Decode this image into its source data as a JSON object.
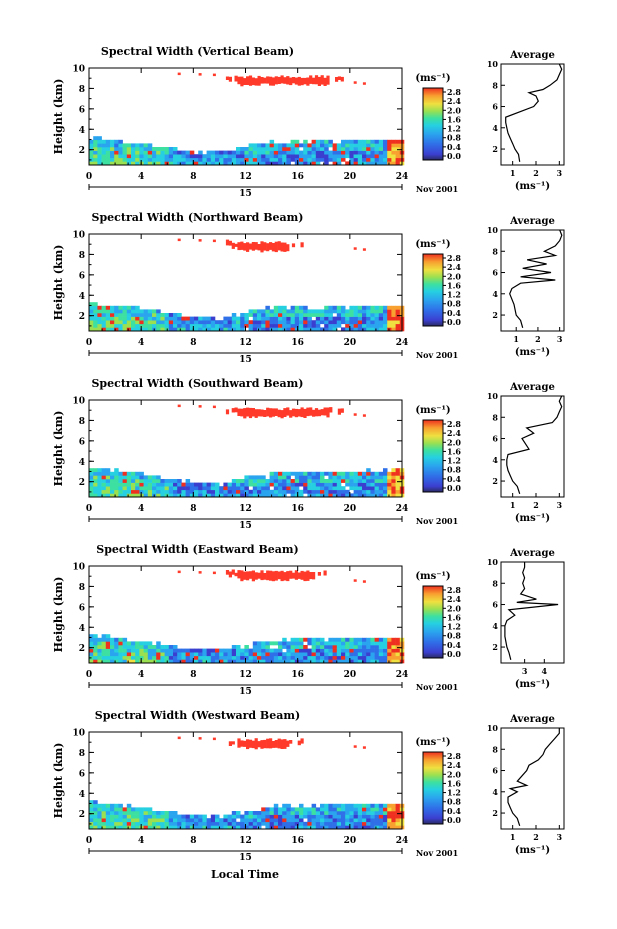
{
  "figure": {
    "xlabel": "Local Time",
    "colorbar_unit": "(ms⁻¹)",
    "colorbar_ticks": [
      "2.8",
      "2.4",
      "2.0",
      "1.6",
      "1.2",
      "0.8",
      "0.4",
      "0.0"
    ],
    "date_label": "15",
    "month_label": "Nov 2001",
    "avg_title": "Average",
    "avg_xlabel": "(ms⁻¹)",
    "colors": {
      "high_layer": "#ff3a2a",
      "colormap": [
        "#2b2b63",
        "#3b3fd0",
        "#2f6fe8",
        "#2aa4ee",
        "#26d0e0",
        "#3de0a0",
        "#9be050",
        "#f0e040",
        "#f8a030",
        "#ef3020"
      ]
    }
  },
  "chart_data": [
    {
      "type": "heatmap",
      "title": "Spectral Width (Vertical Beam)",
      "ylabel": "Height (km)",
      "x_ticks": [
        0,
        4,
        8,
        12,
        16,
        20,
        24
      ],
      "y_ticks": [
        2,
        4,
        6,
        8,
        10
      ],
      "xlim": [
        0,
        24
      ],
      "ylim": [
        0.5,
        10
      ],
      "boundary_layer_top_km": [
        3.4,
        3.1,
        2.8,
        2.4,
        2.0,
        2.0,
        2.6,
        2.9,
        3.0,
        3.1,
        3.1,
        3.1,
        3.2
      ],
      "upper_layer": {
        "x_start": 10.5,
        "x_end": 19.5,
        "y_min": 8.2,
        "y_max": 9.3
      },
      "average": {
        "xlabel_ticks": [
          "1",
          "2",
          "3"
        ],
        "xlim": [
          0.5,
          3.2
        ],
        "y_ticks": [
          2,
          4,
          6,
          8,
          10
        ],
        "y": [
          0.8,
          1.5,
          2.0,
          2.5,
          3.0,
          3.5,
          4.0,
          4.5,
          5.0,
          6.0,
          6.5,
          7.0,
          7.3,
          7.6,
          8.0,
          8.5,
          9.0,
          9.5,
          10.0
        ],
        "x": [
          1.3,
          1.25,
          1.1,
          1.0,
          0.9,
          0.8,
          0.75,
          0.7,
          0.7,
          1.9,
          2.1,
          2.0,
          1.7,
          2.3,
          2.6,
          2.9,
          3.0,
          3.1,
          3.0
        ]
      }
    },
    {
      "type": "heatmap",
      "title": "Spectral Width (Northward Beam)",
      "ylabel": "Height (km)",
      "x_ticks": [
        0,
        4,
        8,
        12,
        16,
        20,
        24
      ],
      "y_ticks": [
        2,
        4,
        6,
        8,
        10
      ],
      "xlim": [
        0,
        24
      ],
      "ylim": [
        0.5,
        10
      ],
      "boundary_layer_top_km": [
        3.5,
        3.1,
        2.9,
        2.4,
        2.0,
        1.9,
        2.6,
        3.0,
        3.0,
        3.1,
        3.1,
        3.2,
        3.2
      ],
      "upper_layer": {
        "x_start": 10.5,
        "x_end": 16.5,
        "y_min": 8.2,
        "y_max": 9.3
      },
      "average": {
        "xlabel_ticks": [
          "1",
          "2",
          "3"
        ],
        "xlim": [
          0.3,
          3.2
        ],
        "y_ticks": [
          2,
          4,
          6,
          8,
          10
        ],
        "y": [
          0.8,
          1.5,
          2.0,
          3.0,
          4.0,
          4.5,
          5.0,
          5.3,
          5.6,
          6.0,
          6.4,
          6.8,
          7.2,
          7.6,
          8.0,
          8.5,
          9.0,
          9.5,
          10.0
        ],
        "x": [
          1.3,
          1.2,
          1.0,
          0.9,
          0.7,
          0.8,
          1.2,
          2.8,
          1.2,
          2.6,
          1.3,
          2.4,
          1.5,
          2.8,
          2.3,
          2.8,
          3.0,
          3.1,
          3.0
        ]
      }
    },
    {
      "type": "heatmap",
      "title": "Spectral Width (Southward Beam)",
      "ylabel": "Height (km)",
      "x_ticks": [
        0,
        4,
        8,
        12,
        16,
        20,
        24
      ],
      "y_ticks": [
        2,
        4,
        6,
        8,
        10
      ],
      "xlim": [
        0,
        24
      ],
      "ylim": [
        0.5,
        10
      ],
      "boundary_layer_top_km": [
        3.6,
        3.3,
        3.0,
        2.5,
        2.1,
        2.0,
        2.6,
        3.0,
        3.1,
        3.2,
        3.2,
        3.2,
        3.3
      ],
      "upper_layer": {
        "x_start": 10.5,
        "x_end": 19.5,
        "y_min": 8.2,
        "y_max": 9.3
      },
      "average": {
        "xlabel_ticks": [
          "1",
          "2",
          "3"
        ],
        "xlim": [
          0.5,
          3.2
        ],
        "y_ticks": [
          2,
          4,
          6,
          8,
          10
        ],
        "y": [
          0.8,
          1.5,
          2.0,
          2.5,
          3.0,
          3.5,
          4.0,
          4.5,
          5.0,
          6.0,
          6.5,
          7.0,
          7.5,
          8.0,
          8.5,
          9.0,
          9.5,
          10.0
        ],
        "x": [
          1.3,
          1.2,
          1.0,
          0.9,
          0.8,
          0.75,
          0.75,
          0.8,
          1.7,
          1.4,
          1.9,
          1.6,
          2.7,
          2.9,
          3.0,
          3.1,
          3.0,
          3.1
        ]
      }
    },
    {
      "type": "heatmap",
      "title": "Spectral Width (Eastward Beam)",
      "ylabel": "Height (km)",
      "x_ticks": [
        0,
        4,
        8,
        12,
        16,
        20,
        24
      ],
      "y_ticks": [
        2,
        4,
        6,
        8,
        10
      ],
      "xlim": [
        0,
        24
      ],
      "ylim": [
        0.5,
        10
      ],
      "boundary_layer_top_km": [
        3.5,
        3.2,
        2.8,
        2.4,
        2.0,
        2.0,
        2.6,
        2.9,
        3.0,
        3.1,
        3.1,
        3.2,
        3.2
      ],
      "upper_layer": {
        "x_start": 10.5,
        "x_end": 18.5,
        "y_min": 8.5,
        "y_max": 9.6
      },
      "average": {
        "xlabel_ticks": [
          "3",
          "4"
        ],
        "xlim": [
          1.8,
          5.0
        ],
        "y_ticks": [
          2,
          4,
          6,
          8,
          10
        ],
        "y": [
          0.8,
          1.5,
          2.0,
          3.0,
          4.0,
          4.5,
          5.0,
          5.5,
          6.0,
          6.2,
          6.5,
          7.0,
          7.5,
          8.0,
          8.5,
          9.0,
          9.5,
          10.0
        ],
        "x": [
          2.3,
          2.2,
          2.1,
          2.0,
          2.0,
          2.1,
          2.5,
          2.2,
          4.7,
          2.6,
          3.6,
          2.8,
          3.0,
          2.9,
          3.0,
          2.9,
          3.0,
          3.0
        ]
      }
    },
    {
      "type": "heatmap",
      "title": "Spectral Width (Westward Beam)",
      "ylabel": "Height (km)",
      "x_ticks": [
        0,
        4,
        8,
        12,
        16,
        20,
        24
      ],
      "y_ticks": [
        2,
        4,
        6,
        8,
        10
      ],
      "xlim": [
        0,
        24
      ],
      "ylim": [
        0.5,
        10
      ],
      "boundary_layer_top_km": [
        3.4,
        3.1,
        2.8,
        2.4,
        2.0,
        1.9,
        2.5,
        2.9,
        3.0,
        3.0,
        3.1,
        3.1,
        3.2
      ],
      "upper_layer": {
        "x_start": 10.5,
        "x_end": 16.5,
        "y_min": 8.3,
        "y_max": 9.4
      },
      "average": {
        "xlabel_ticks": [
          "1",
          "2",
          "3"
        ],
        "xlim": [
          0.5,
          3.2
        ],
        "y_ticks": [
          2,
          4,
          6,
          8,
          10
        ],
        "y": [
          0.8,
          1.5,
          2.0,
          2.5,
          3.0,
          3.5,
          4.0,
          4.3,
          4.6,
          5.0,
          6.0,
          6.5,
          7.0,
          7.5,
          8.0,
          8.5,
          9.0,
          9.5,
          10.0
        ],
        "x": [
          1.3,
          1.2,
          1.0,
          0.9,
          0.8,
          0.8,
          1.2,
          0.9,
          1.6,
          1.2,
          1.6,
          1.7,
          2.1,
          2.3,
          2.4,
          2.6,
          2.8,
          3.0,
          3.0
        ]
      }
    }
  ]
}
